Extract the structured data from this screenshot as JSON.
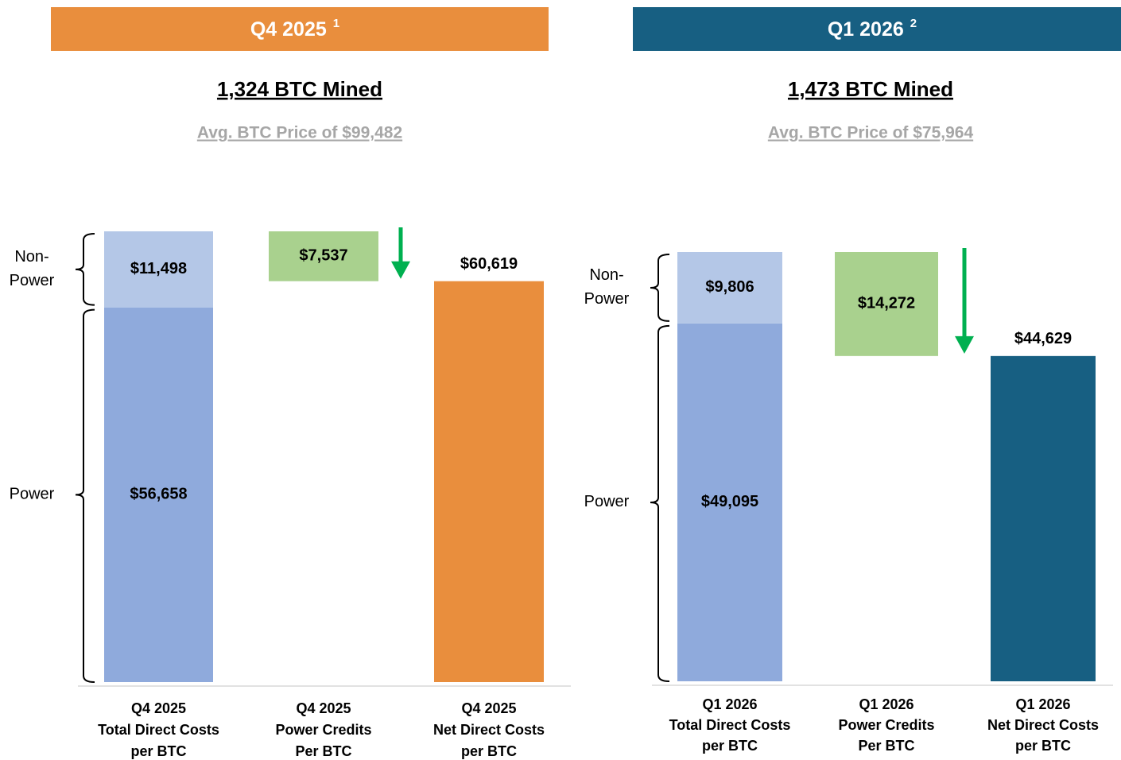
{
  "chart_data": [
    {
      "type": "waterfall",
      "header": "Q4 2025",
      "header_note": "1",
      "header_color": "#e98e3d",
      "subtitle": "1,324 BTC Mined",
      "note": "Avg. BTC Price of $99,482",
      "categories": [
        [
          "Q4 2025",
          "Total Direct Costs",
          "per BTC"
        ],
        [
          "Q4 2025",
          "Power Credits",
          "Per BTC"
        ],
        [
          "Q4 2025",
          "Net Direct Costs",
          "per BTC"
        ]
      ],
      "stack": [
        {
          "name": [
            "Power"
          ],
          "color": "#8faadc",
          "value": 56658,
          "value_label": "$56,658"
        },
        {
          "name": [
            "Non-",
            "Power"
          ],
          "color": "#b4c7e7",
          "value": 11498,
          "value_label": "$11,498"
        }
      ],
      "credit": {
        "color": "#a9d18e",
        "value": 7537,
        "value_label": "$7,537",
        "arrow_color": "#00b050"
      },
      "net": {
        "color": "#e98e3d",
        "value": 60619,
        "value_label": "$60,619"
      }
    },
    {
      "type": "waterfall",
      "header": "Q1 2026",
      "header_note": "2",
      "header_color": "#175f82",
      "subtitle": "1,473 BTC Mined",
      "note": "Avg. BTC Price of $75,964",
      "categories": [
        [
          "Q1 2026",
          "Total Direct Costs",
          "per BTC"
        ],
        [
          "Q1 2026",
          "Power Credits",
          "Per BTC"
        ],
        [
          "Q1 2026",
          "Net Direct Costs",
          "per BTC"
        ]
      ],
      "stack": [
        {
          "name": [
            "Power"
          ],
          "color": "#8faadc",
          "value": 49095,
          "value_label": "$49,095"
        },
        {
          "name": [
            "Non-",
            "Power"
          ],
          "color": "#b4c7e7",
          "value": 9806,
          "value_label": "$9,806"
        }
      ],
      "credit": {
        "color": "#a9d18e",
        "value": 14272,
        "value_label": "$14,272",
        "arrow_color": "#00b050"
      },
      "net": {
        "color": "#175f82",
        "value": 44629,
        "value_label": "$44,629"
      }
    }
  ]
}
